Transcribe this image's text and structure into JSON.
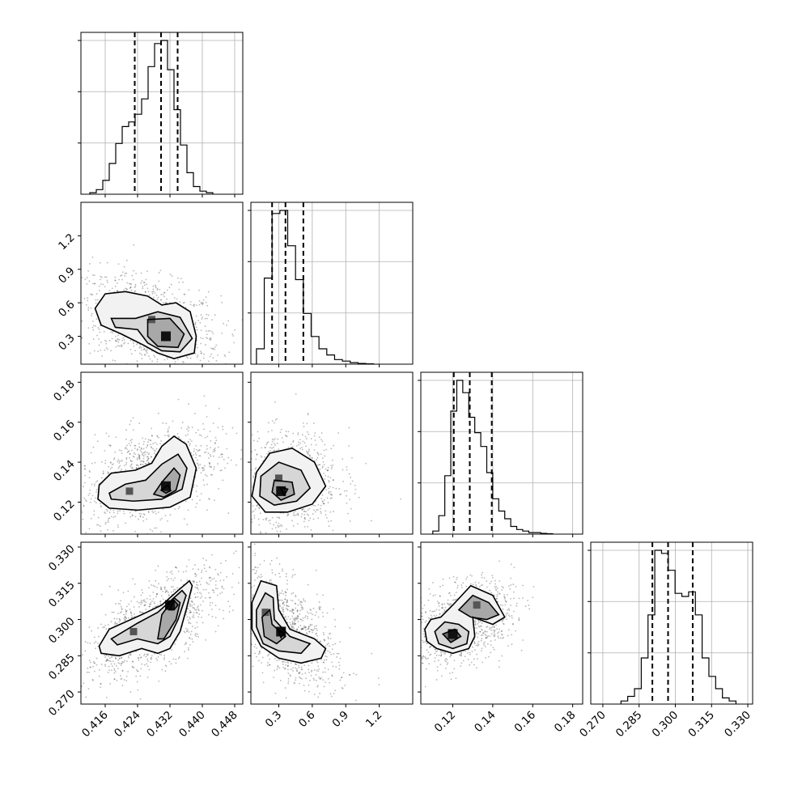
{
  "chart_data": {
    "type": "corner",
    "parameters": [
      "p0",
      "p1",
      "p2",
      "p3"
    ],
    "ranges": [
      [
        0.41,
        0.45
      ],
      [
        0.05,
        1.5
      ],
      [
        0.104,
        0.185
      ],
      [
        0.265,
        0.332
      ]
    ],
    "ticks": [
      [
        0.416,
        0.424,
        0.432,
        0.44,
        0.448
      ],
      [
        0.3,
        0.6,
        0.9,
        1.2
      ],
      [
        0.12,
        0.14,
        0.16,
        0.18
      ],
      [
        0.27,
        0.285,
        0.3,
        0.315,
        0.33
      ]
    ],
    "tick_labels": [
      [
        "0.416",
        "0.424",
        "0.432",
        "0.440",
        "0.448"
      ],
      [
        "0.3",
        "0.6",
        "0.9",
        "1.2"
      ],
      [
        "0.12",
        "0.14",
        "0.16",
        "0.18"
      ],
      [
        "0.270",
        "0.285",
        "0.300",
        "0.315",
        "0.330"
      ]
    ],
    "quantiles": [
      [
        0.4233,
        0.4298,
        0.4339
      ],
      [
        0.24,
        0.36,
        0.52
      ],
      [
        0.1205,
        0.1285,
        0.1395
      ],
      [
        0.2905,
        0.297,
        0.3072
      ]
    ],
    "histograms": [
      {
        "bin_edges": [
          0.4122,
          0.4138,
          0.4154,
          0.417,
          0.4186,
          0.4202,
          0.4218,
          0.4234,
          0.425,
          0.4266,
          0.4282,
          0.4298,
          0.4314,
          0.433,
          0.4346,
          0.4362,
          0.4378,
          0.4394,
          0.441,
          0.4426
        ],
        "counts": [
          1,
          3,
          9,
          20,
          33,
          44,
          47,
          52,
          62,
          83,
          98,
          100,
          81,
          55,
          32,
          14,
          5,
          2,
          1
        ]
      },
      {
        "bin_edges": [
          0.1,
          0.17,
          0.24,
          0.31,
          0.38,
          0.45,
          0.52,
          0.59,
          0.66,
          0.73,
          0.8,
          0.87,
          0.94,
          1.01,
          1.08,
          1.15
        ],
        "counts": [
          10,
          56,
          98,
          100,
          77,
          55,
          33,
          18,
          10,
          6,
          3,
          2,
          1,
          0.5,
          0.2
        ]
      },
      {
        "bin_edges": [
          0.11,
          0.113,
          0.116,
          0.119,
          0.122,
          0.125,
          0.128,
          0.131,
          0.134,
          0.137,
          0.14,
          0.143,
          0.146,
          0.149,
          0.152,
          0.155,
          0.158,
          0.161,
          0.164,
          0.167,
          0.17
        ],
        "counts": [
          2,
          12,
          38,
          80,
          100,
          92,
          76,
          66,
          57,
          40,
          23,
          15,
          10,
          5,
          3,
          2,
          1,
          1,
          0.5,
          0.3
        ]
      },
      {
        "bin_edges": [
          0.2775,
          0.2803,
          0.2831,
          0.2859,
          0.2887,
          0.2915,
          0.2943,
          0.2971,
          0.2999,
          0.3027,
          0.3055,
          0.3083,
          0.3111,
          0.3139,
          0.3167,
          0.3195,
          0.3223,
          0.3251
        ],
        "counts": [
          2,
          5,
          10,
          30,
          58,
          100,
          98,
          87,
          72,
          70,
          73,
          58,
          30,
          18,
          10,
          4,
          2
        ]
      }
    ],
    "joint_contours": [
      {
        "x_param": 0,
        "y_param": 1,
        "levels": [
          [
            [
              0.4135,
              0.55
            ],
            [
              0.416,
              0.68
            ],
            [
              0.421,
              0.7
            ],
            [
              0.4265,
              0.66
            ],
            [
              0.43,
              0.58
            ],
            [
              0.4335,
              0.6
            ],
            [
              0.437,
              0.52
            ],
            [
              0.4385,
              0.3
            ],
            [
              0.438,
              0.15
            ],
            [
              0.433,
              0.1
            ],
            [
              0.429,
              0.15
            ],
            [
              0.4255,
              0.22
            ],
            [
              0.42,
              0.32
            ],
            [
              0.415,
              0.4
            ]
          ],
          [
            [
              0.4175,
              0.46
            ],
            [
              0.4235,
              0.46
            ],
            [
              0.429,
              0.52
            ],
            [
              0.4345,
              0.47
            ],
            [
              0.4375,
              0.28
            ],
            [
              0.4345,
              0.16
            ],
            [
              0.43,
              0.17
            ],
            [
              0.4265,
              0.24
            ],
            [
              0.424,
              0.36
            ],
            [
              0.4185,
              0.38
            ]
          ],
          [
            [
              0.4265,
              0.45
            ],
            [
              0.432,
              0.46
            ],
            [
              0.4355,
              0.32
            ],
            [
              0.434,
              0.2
            ],
            [
              0.429,
              0.21
            ],
            [
              0.4265,
              0.3
            ]
          ]
        ]
      },
      {
        "x_param": 0,
        "y_param": 2,
        "levels": [
          [
            [
              0.4145,
              0.1285
            ],
            [
              0.4175,
              0.1345
            ],
            [
              0.4235,
              0.136
            ],
            [
              0.4275,
              0.1395
            ],
            [
              0.43,
              0.148
            ],
            [
              0.433,
              0.153
            ],
            [
              0.436,
              0.149
            ],
            [
              0.4385,
              0.137
            ],
            [
              0.437,
              0.1225
            ],
            [
              0.432,
              0.1175
            ],
            [
              0.424,
              0.116
            ],
            [
              0.417,
              0.117
            ],
            [
              0.4142,
              0.1215
            ]
          ],
          [
            [
              0.417,
              0.1245
            ],
            [
              0.421,
              0.129
            ],
            [
              0.426,
              0.131
            ],
            [
              0.43,
              0.139
            ],
            [
              0.434,
              0.144
            ],
            [
              0.4362,
              0.137
            ],
            [
              0.435,
              0.1265
            ],
            [
              0.43,
              0.1215
            ],
            [
              0.423,
              0.1205
            ],
            [
              0.4175,
              0.1215
            ]
          ],
          [
            [
              0.428,
              0.124
            ],
            [
              0.43,
              0.13
            ],
            [
              0.433,
              0.137
            ],
            [
              0.4345,
              0.1335
            ],
            [
              0.4335,
              0.126
            ],
            [
              0.4305,
              0.1225
            ]
          ],
          [
            [
              0.4298,
              0.126
            ],
            [
              0.4315,
              0.1285
            ],
            [
              0.4322,
              0.1258
            ],
            [
              0.431,
              0.1245
            ]
          ]
        ]
      },
      {
        "x_param": 1,
        "y_param": 2,
        "levels": [
          [
            [
              0.1,
              0.135
            ],
            [
              0.22,
              0.1445
            ],
            [
              0.42,
              0.147
            ],
            [
              0.62,
              0.14
            ],
            [
              0.72,
              0.128
            ],
            [
              0.6,
              0.119
            ],
            [
              0.38,
              0.115
            ],
            [
              0.18,
              0.115
            ],
            [
              0.06,
              0.123
            ]
          ],
          [
            [
              0.14,
              0.133
            ],
            [
              0.3,
              0.14
            ],
            [
              0.5,
              0.136
            ],
            [
              0.58,
              0.127
            ],
            [
              0.46,
              0.1205
            ],
            [
              0.26,
              0.1185
            ],
            [
              0.13,
              0.123
            ]
          ],
          [
            [
              0.26,
              0.131
            ],
            [
              0.42,
              0.13
            ],
            [
              0.44,
              0.124
            ],
            [
              0.32,
              0.121
            ],
            [
              0.24,
              0.125
            ]
          ],
          [
            [
              0.31,
              0.1275
            ],
            [
              0.38,
              0.1265
            ],
            [
              0.35,
              0.1235
            ]
          ]
        ]
      },
      {
        "x_param": 0,
        "y_param": 3,
        "levels": [
          [
            [
              0.4145,
              0.289
            ],
            [
              0.417,
              0.296
            ],
            [
              0.425,
              0.302
            ],
            [
              0.43,
              0.306
            ],
            [
              0.434,
              0.312
            ],
            [
              0.4368,
              0.316
            ],
            [
              0.4375,
              0.314
            ],
            [
              0.436,
              0.304
            ],
            [
              0.4345,
              0.295
            ],
            [
              0.432,
              0.288
            ],
            [
              0.429,
              0.286
            ],
            [
              0.425,
              0.288
            ],
            [
              0.4195,
              0.285
            ],
            [
              0.415,
              0.286
            ]
          ],
          [
            [
              0.4175,
              0.292
            ],
            [
              0.424,
              0.2985
            ],
            [
              0.429,
              0.303
            ],
            [
              0.433,
              0.309
            ],
            [
              0.435,
              0.312
            ],
            [
              0.436,
              0.31
            ],
            [
              0.434,
              0.3
            ],
            [
              0.432,
              0.293
            ],
            [
              0.429,
              0.29
            ],
            [
              0.424,
              0.292
            ],
            [
              0.419,
              0.2895
            ]
          ],
          [
            [
              0.429,
              0.292
            ],
            [
              0.43,
              0.302
            ],
            [
              0.433,
              0.309
            ],
            [
              0.4345,
              0.307
            ],
            [
              0.4335,
              0.3
            ],
            [
              0.4305,
              0.292
            ]
          ],
          [
            [
              0.4318,
              0.304
            ],
            [
              0.433,
              0.308
            ],
            [
              0.434,
              0.306
            ],
            [
              0.433,
              0.304
            ]
          ]
        ]
      },
      {
        "x_param": 1,
        "y_param": 3,
        "levels": [
          [
            [
              0.06,
              0.307
            ],
            [
              0.14,
              0.316
            ],
            [
              0.28,
              0.314
            ],
            [
              0.3,
              0.304
            ],
            [
              0.4,
              0.296
            ],
            [
              0.62,
              0.292
            ],
            [
              0.72,
              0.288
            ],
            [
              0.68,
              0.284
            ],
            [
              0.5,
              0.282
            ],
            [
              0.3,
              0.284
            ],
            [
              0.14,
              0.289
            ],
            [
              0.06,
              0.296
            ]
          ],
          [
            [
              0.1,
              0.304
            ],
            [
              0.18,
              0.311
            ],
            [
              0.25,
              0.309
            ],
            [
              0.26,
              0.3
            ],
            [
              0.4,
              0.293
            ],
            [
              0.58,
              0.29
            ],
            [
              0.5,
              0.286
            ],
            [
              0.3,
              0.287
            ],
            [
              0.16,
              0.29
            ],
            [
              0.1,
              0.297
            ]
          ],
          [
            [
              0.15,
              0.301
            ],
            [
              0.22,
              0.304
            ],
            [
              0.24,
              0.298
            ],
            [
              0.36,
              0.293
            ],
            [
              0.28,
              0.29
            ],
            [
              0.17,
              0.293
            ]
          ],
          [
            [
              0.29,
              0.296
            ],
            [
              0.35,
              0.2945
            ],
            [
              0.32,
              0.2925
            ]
          ]
        ]
      },
      {
        "x_param": 2,
        "y_param": 3,
        "levels": [
          [
            [
              0.106,
              0.296
            ],
            [
              0.109,
              0.3
            ],
            [
              0.114,
              0.301
            ],
            [
              0.12,
              0.306
            ],
            [
              0.129,
              0.314
            ],
            [
              0.14,
              0.31
            ],
            [
              0.146,
              0.301
            ],
            [
              0.14,
              0.298
            ],
            [
              0.13,
              0.301
            ],
            [
              0.131,
              0.293
            ],
            [
              0.128,
              0.288
            ],
            [
              0.12,
              0.286
            ],
            [
              0.112,
              0.288
            ],
            [
              0.107,
              0.291
            ]
          ],
          [
            [
              0.111,
              0.295
            ],
            [
              0.116,
              0.299
            ],
            [
              0.123,
              0.298
            ],
            [
              0.128,
              0.295
            ],
            [
              0.127,
              0.29
            ],
            [
              0.12,
              0.288
            ],
            [
              0.113,
              0.29
            ]
          ],
          [
            [
              0.123,
              0.304
            ],
            [
              0.13,
              0.31
            ],
            [
              0.138,
              0.307
            ],
            [
              0.143,
              0.302
            ],
            [
              0.137,
              0.3
            ],
            [
              0.129,
              0.301
            ]
          ],
          [
            [
              0.115,
              0.294
            ],
            [
              0.121,
              0.296
            ],
            [
              0.124,
              0.293
            ],
            [
              0.119,
              0.2905
            ]
          ]
        ]
      }
    ],
    "density_peaks": [
      {
        "x_param": 0,
        "y_param": 1,
        "centers": [
          [
            0.431,
            0.3
          ],
          [
            0.4275,
            0.45
          ]
        ]
      },
      {
        "x_param": 0,
        "y_param": 2,
        "centers": [
          [
            0.431,
            0.128
          ],
          [
            0.422,
            0.1255
          ]
        ]
      },
      {
        "x_param": 1,
        "y_param": 2,
        "centers": [
          [
            0.32,
            0.1255
          ],
          [
            0.3,
            0.132
          ]
        ]
      },
      {
        "x_param": 0,
        "y_param": 3,
        "centers": [
          [
            0.432,
            0.306
          ],
          [
            0.423,
            0.295
          ]
        ]
      },
      {
        "x_param": 1,
        "y_param": 3,
        "centers": [
          [
            0.32,
            0.295
          ],
          [
            0.18,
            0.303
          ]
        ]
      },
      {
        "x_param": 2,
        "y_param": 3,
        "centers": [
          [
            0.12,
            0.294
          ],
          [
            0.132,
            0.306
          ]
        ]
      }
    ],
    "grid": true,
    "title": "",
    "xlabel": "",
    "ylabel": ""
  }
}
